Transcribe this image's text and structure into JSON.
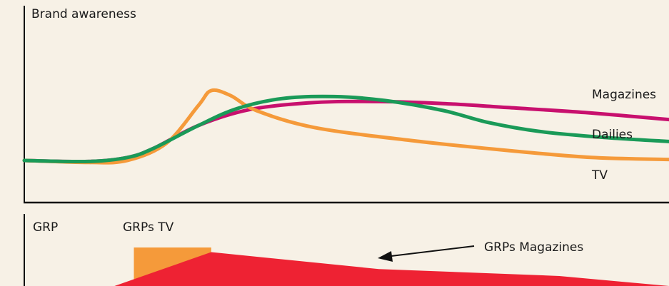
{
  "chart_data": [
    {
      "type": "line",
      "ylabel": "Brand awareness",
      "xlabel": "",
      "series": [
        {
          "name": "Magazines",
          "color": "#c8106e",
          "points": [
            [
              0,
              0.05
            ],
            [
              0.1,
              0.04
            ],
            [
              0.16,
              0.08
            ],
            [
              0.2,
              0.17
            ],
            [
              0.27,
              0.4
            ],
            [
              0.35,
              0.56
            ],
            [
              0.45,
              0.63
            ],
            [
              0.55,
              0.64
            ],
            [
              0.65,
              0.62
            ],
            [
              0.75,
              0.58
            ],
            [
              0.87,
              0.53
            ],
            [
              1.0,
              0.46
            ]
          ]
        },
        {
          "name": "Dailies",
          "color": "#1a9a58",
          "points": [
            [
              0,
              0.05
            ],
            [
              0.1,
              0.04
            ],
            [
              0.16,
              0.08
            ],
            [
              0.2,
              0.17
            ],
            [
              0.27,
              0.4
            ],
            [
              0.33,
              0.57
            ],
            [
              0.4,
              0.67
            ],
            [
              0.48,
              0.69
            ],
            [
              0.56,
              0.65
            ],
            [
              0.65,
              0.55
            ],
            [
              0.72,
              0.43
            ],
            [
              0.8,
              0.34
            ],
            [
              0.9,
              0.28
            ],
            [
              1.0,
              0.24
            ]
          ]
        },
        {
          "name": "TV",
          "color": "#f59a3a",
          "points": [
            [
              0,
              0.05
            ],
            [
              0.1,
              0.03
            ],
            [
              0.16,
              0.05
            ],
            [
              0.22,
              0.22
            ],
            [
              0.27,
              0.6
            ],
            [
              0.29,
              0.75
            ],
            [
              0.32,
              0.7
            ],
            [
              0.36,
              0.55
            ],
            [
              0.45,
              0.38
            ],
            [
              0.6,
              0.25
            ],
            [
              0.75,
              0.15
            ],
            [
              0.88,
              0.08
            ],
            [
              1.0,
              0.06
            ]
          ]
        }
      ]
    },
    {
      "type": "area",
      "ylabel": "GRP",
      "series": [
        {
          "name": "GRPs TV",
          "color": "#f59a3a",
          "points": [
            [
              0.17,
              0
            ],
            [
              0.17,
              1.0
            ],
            [
              0.29,
              1.0
            ],
            [
              0.29,
              0
            ]
          ]
        },
        {
          "name": "GRPs Magazines",
          "color": "#ee2233",
          "points": [
            [
              0.14,
              0
            ],
            [
              0.29,
              0.88
            ],
            [
              0.55,
              0.44
            ],
            [
              0.83,
              0.26
            ],
            [
              1.0,
              0
            ]
          ]
        }
      ]
    }
  ]
}
